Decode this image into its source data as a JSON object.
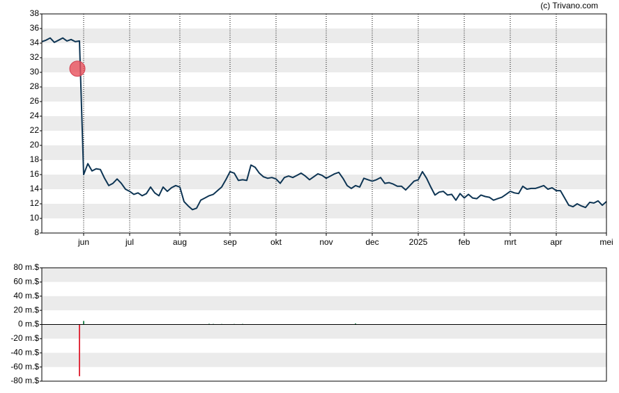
{
  "source": "(c) Trivano.com",
  "chart_data": [
    {
      "type": "line",
      "color": "#0d3453",
      "banded": true,
      "band_color": "#ebebeb",
      "ylim": [
        8,
        38
      ],
      "yticks": [
        8,
        10,
        12,
        14,
        16,
        18,
        20,
        22,
        24,
        26,
        28,
        30,
        32,
        34,
        36,
        38
      ],
      "categories": [
        null,
        null,
        null,
        null,
        null,
        null,
        null,
        null,
        null,
        null,
        "jun",
        null,
        null,
        null,
        null,
        null,
        null,
        null,
        null,
        null,
        null,
        "jul",
        null,
        null,
        null,
        null,
        null,
        null,
        null,
        null,
        null,
        null,
        null,
        "aug",
        null,
        null,
        null,
        null,
        null,
        null,
        null,
        null,
        null,
        null,
        null,
        "sep",
        null,
        null,
        null,
        null,
        null,
        null,
        null,
        null,
        null,
        null,
        "okt",
        null,
        null,
        null,
        null,
        null,
        null,
        null,
        null,
        null,
        null,
        null,
        "nov",
        null,
        null,
        null,
        null,
        null,
        null,
        null,
        null,
        null,
        null,
        "dec",
        null,
        null,
        null,
        null,
        null,
        null,
        null,
        null,
        null,
        null,
        "2025",
        null,
        null,
        null,
        null,
        null,
        null,
        null,
        null,
        null,
        null,
        "feb",
        null,
        null,
        null,
        null,
        null,
        null,
        null,
        null,
        null,
        null,
        "mrt",
        null,
        null,
        null,
        null,
        null,
        null,
        null,
        null,
        null,
        null,
        "apr",
        null,
        null,
        null,
        null,
        null,
        null,
        null,
        null,
        null,
        null,
        null,
        "mei"
      ],
      "values": [
        34.2,
        34.4,
        34.7,
        34.1,
        34.4,
        34.7,
        34.3,
        34.5,
        34.2,
        34.3,
        16,
        17.5,
        16.5,
        16.8,
        16.7,
        15.5,
        14.5,
        14.8,
        15.4,
        14.8,
        14,
        13.7,
        13.3,
        13.5,
        13.1,
        13.4,
        14.3,
        13.5,
        13.1,
        14.3,
        13.7,
        14.2,
        14.5,
        14.3,
        12.3,
        11.7,
        11.2,
        11.4,
        12.5,
        12.8,
        13.1,
        13.3,
        13.8,
        14.3,
        15.3,
        16.4,
        16.2,
        15.2,
        15.3,
        15.2,
        17.3,
        17,
        16.2,
        15.7,
        15.5,
        15.6,
        15.4,
        14.8,
        15.6,
        15.8,
        15.6,
        15.9,
        16.2,
        15.8,
        15.3,
        15.7,
        16.1,
        15.9,
        15.5,
        15.8,
        16.1,
        16.3,
        15.5,
        14.5,
        14.1,
        14.5,
        14.3,
        15.5,
        15.3,
        15.1,
        15.3,
        15.6,
        14.8,
        14.9,
        14.7,
        14.4,
        14.4,
        13.9,
        14.5,
        15.1,
        15.3,
        16.4,
        15.5,
        14.3,
        13.2,
        13.6,
        13.7,
        13.2,
        13.3,
        12.5,
        13.4,
        12.8,
        13.3,
        12.8,
        12.7,
        13.2,
        13,
        12.9,
        12.5,
        12.7,
        12.9,
        13.3,
        13.7,
        13.5,
        13.4,
        14.4,
        14,
        14.1,
        14.1,
        14.3,
        14.5,
        14,
        14.2,
        13.8,
        13.8,
        12.8,
        11.8,
        11.6,
        12,
        11.7,
        11.5,
        12.2,
        12.1,
        12.4,
        11.8,
        12.3
      ],
      "events": {
        "color": "#e8505b",
        "values": [
          null,
          null,
          null,
          null,
          null,
          null,
          null,
          null,
          null,
          30.5,
          null,
          null,
          null,
          null,
          null,
          null,
          null,
          null,
          null,
          null,
          null,
          null,
          null,
          null,
          null,
          null,
          null,
          null,
          null,
          null,
          null,
          null,
          null,
          null,
          null,
          null,
          null,
          null,
          null,
          null,
          null,
          null,
          null,
          null,
          null,
          null,
          null,
          null,
          null,
          null,
          null,
          null,
          null,
          null,
          null,
          null,
          null,
          null,
          null,
          null,
          null,
          null,
          null,
          null,
          null,
          null,
          null,
          null,
          null,
          null,
          null,
          null,
          null,
          null,
          null,
          null,
          null,
          null,
          null,
          null,
          null,
          null,
          null,
          null,
          null,
          null,
          null,
          null,
          null,
          null,
          null,
          null,
          null,
          null,
          null,
          null,
          null,
          null,
          null,
          null,
          null,
          null,
          null,
          null,
          null,
          null,
          null,
          null,
          null,
          null,
          null,
          null,
          null,
          null,
          null,
          null,
          null,
          null,
          null,
          null,
          null,
          null,
          null,
          null,
          null,
          null,
          null,
          null,
          null,
          null,
          null,
          null,
          null,
          null,
          null,
          null
        ]
      }
    },
    {
      "type": "bar",
      "banded": true,
      "band_color": "#ebebeb",
      "positive_color": "#2e8b57",
      "negative_color": "#e0303f",
      "ylim": [
        -80,
        80
      ],
      "yticks": [
        {
          "value": -80,
          "label": "-80 m.$"
        },
        {
          "value": -60,
          "label": "-60 m.$"
        },
        {
          "value": -40,
          "label": "-40 m.$"
        },
        {
          "value": -20,
          "label": "-20 m.$"
        },
        {
          "value": 0,
          "label": "0 m.$"
        },
        {
          "value": 20,
          "label": "20 m.$"
        },
        {
          "value": 40,
          "label": "40 m.$"
        },
        {
          "value": 60,
          "label": "60 m.$"
        },
        {
          "value": 80,
          "label": "80 m.$"
        }
      ],
      "values": [
        null,
        null,
        null,
        null,
        null,
        null,
        null,
        null,
        null,
        -73,
        5,
        0.5,
        null,
        null,
        null,
        null,
        null,
        null,
        null,
        null,
        null,
        null,
        null,
        null,
        null,
        null,
        null,
        null,
        null,
        null,
        null,
        null,
        null,
        null,
        null,
        null,
        null,
        null,
        null,
        null,
        1,
        0.8,
        null,
        0.7,
        null,
        null,
        0.7,
        null,
        0.8,
        null,
        null,
        null,
        null,
        null,
        null,
        null,
        null,
        null,
        null,
        null,
        null,
        null,
        null,
        null,
        null,
        null,
        null,
        null,
        null,
        null,
        null,
        null,
        null,
        null,
        null,
        1.5,
        null,
        null,
        null,
        null,
        null,
        null,
        null,
        null,
        null,
        null,
        null,
        null,
        null,
        null,
        null,
        null,
        null,
        null,
        null,
        null,
        null,
        null,
        null,
        null,
        null,
        null,
        null,
        null,
        null,
        null,
        null,
        null,
        null,
        null,
        null,
        null,
        null,
        null,
        null,
        null,
        null,
        null,
        null,
        null,
        null,
        null,
        null,
        null,
        null,
        null,
        null,
        null,
        null,
        null,
        null,
        null,
        null,
        null,
        null,
        null
      ]
    }
  ]
}
